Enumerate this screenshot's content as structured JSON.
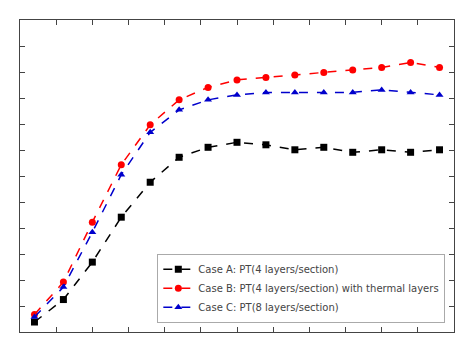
{
  "chart_data": {
    "type": "line",
    "series": [
      {
        "name": "Case A: PT(4 layers/section)",
        "color": "#000000",
        "marker": "square",
        "line_style": "dashed",
        "x": [
          1,
          2,
          3,
          4,
          5,
          6,
          7,
          8,
          9,
          10,
          11,
          12,
          13,
          14,
          15
        ],
        "values": [
          0.04,
          0.13,
          0.28,
          0.46,
          0.6,
          0.7,
          0.74,
          0.76,
          0.75,
          0.73,
          0.74,
          0.72,
          0.73,
          0.72,
          0.73
        ]
      },
      {
        "name": "Case B: PT(4 layers/section) with thermal layers",
        "color": "#ff0000",
        "marker": "circle",
        "line_style": "dashed",
        "x": [
          1,
          2,
          3,
          4,
          5,
          6,
          7,
          8,
          9,
          10,
          11,
          12,
          13,
          14,
          15
        ],
        "values": [
          0.07,
          0.2,
          0.44,
          0.67,
          0.83,
          0.93,
          0.98,
          1.01,
          1.02,
          1.03,
          1.04,
          1.05,
          1.06,
          1.08,
          1.06
        ]
      },
      {
        "name": "Case C: PT(8 layers/section)",
        "color": "#0000cc",
        "marker": "triangle-up",
        "line_style": "dashed",
        "x": [
          1,
          2,
          3,
          4,
          5,
          6,
          7,
          8,
          9,
          10,
          11,
          12,
          13,
          14,
          15
        ],
        "values": [
          0.06,
          0.18,
          0.4,
          0.63,
          0.8,
          0.89,
          0.93,
          0.95,
          0.96,
          0.96,
          0.96,
          0.96,
          0.97,
          0.96,
          0.95
        ]
      }
    ],
    "xlim": [
      0.5,
      15.5
    ],
    "ylim": [
      0,
      1.25
    ],
    "xticks": [
      0.5,
      1.75,
      3,
      4.25,
      5.5,
      6.75,
      8,
      9.25,
      10.5,
      11.75,
      13,
      14.25,
      15.5
    ],
    "yticks": [
      0,
      0.10416666666666667,
      0.20833333333333334,
      0.3125,
      0.4166666666666667,
      0.5208333333333334,
      0.625,
      0.7291666666666666,
      0.8333333333333334,
      0.9375,
      1.0416666666666667,
      1.1458333333333333,
      1.25
    ],
    "tick_labels": false,
    "grid": false,
    "legend": "lower right"
  }
}
